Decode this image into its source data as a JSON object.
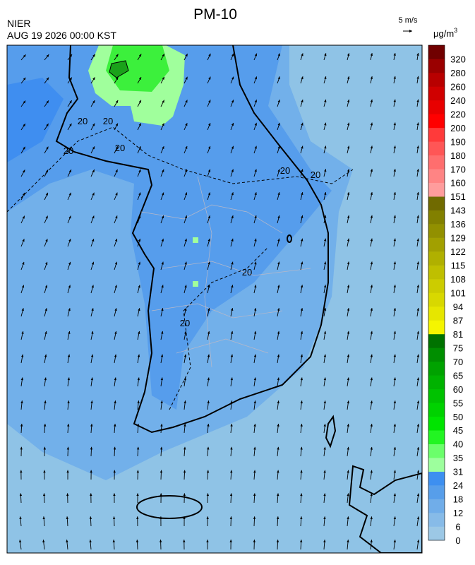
{
  "header": {
    "title": "PM-10",
    "agency": "NIER",
    "datetime": "AUG 19 2026 00:00 KST",
    "wind_scale": "5 m/s"
  },
  "legend": {
    "unit": "μg/m",
    "unit_power": "3",
    "levels": [
      "0",
      "6",
      "12",
      "18",
      "24",
      "31",
      "35",
      "40",
      "45",
      "50",
      "55",
      "60",
      "65",
      "70",
      "75",
      "81",
      "87",
      "94",
      "101",
      "108",
      "115",
      "122",
      "129",
      "136",
      "143",
      "151",
      "160",
      "170",
      "180",
      "190",
      "200",
      "220",
      "240",
      "260",
      "280",
      "320"
    ],
    "colors": [
      "#9cc8e6",
      "#87bbe8",
      "#70ade9",
      "#579eea",
      "#3d8ff0",
      "#9dff9d",
      "#6bff6b",
      "#22f522",
      "#00e400",
      "#00d200",
      "#00c200",
      "#00b200",
      "#00a200",
      "#008e00",
      "#007200",
      "#f5f500",
      "#e6e600",
      "#d8d800",
      "#cccc00",
      "#bfbf00",
      "#b0b000",
      "#a2a000",
      "#929000",
      "#828000",
      "#706a00",
      "#ff9c9c",
      "#ff8484",
      "#ff6e6e",
      "#ff5656",
      "#ff3a3a",
      "#ff0000",
      "#e80000",
      "#d00000",
      "#b80000",
      "#9a0000",
      "#700000"
    ]
  },
  "map": {
    "contour_labels": [
      "20",
      "20",
      "20",
      "20",
      "20",
      "20",
      "20",
      "20"
    ]
  }
}
